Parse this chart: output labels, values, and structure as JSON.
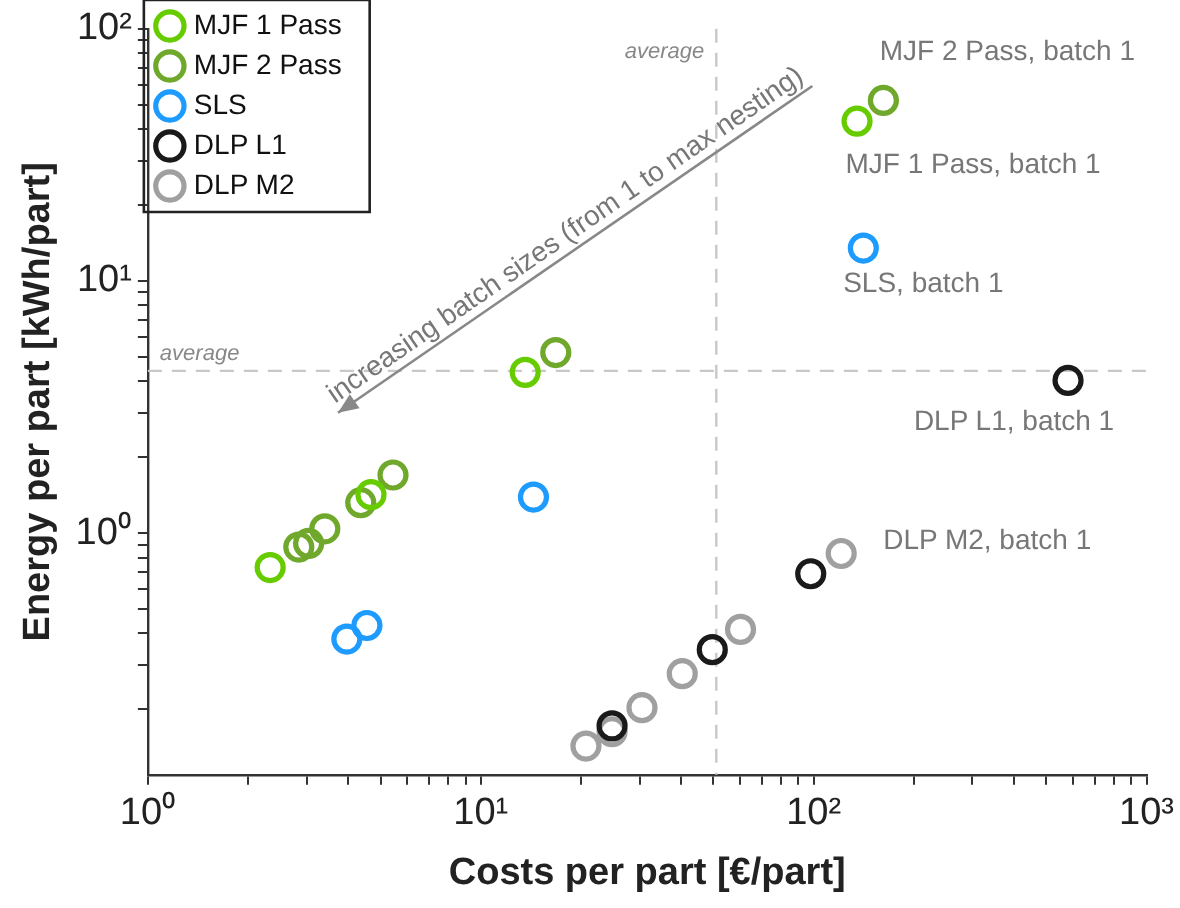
{
  "chart_data": {
    "type": "scatter",
    "xlabel": "Costs per part [€/part]",
    "ylabel": "Energy per part [kWh/part]",
    "log": "xy",
    "grid": false,
    "marker": "circle",
    "legend": "top left",
    "xlim": [
      1,
      1000
    ],
    "ylim": [
      0.11,
      100
    ],
    "xticks": [
      {
        "value": 1,
        "label": "10⁰"
      },
      {
        "value": 2,
        "label": null
      },
      {
        "value": 3,
        "label": null
      },
      {
        "value": 4,
        "label": null
      },
      {
        "value": 5,
        "label": null
      },
      {
        "value": 6,
        "label": null
      },
      {
        "value": 7,
        "label": null
      },
      {
        "value": 8,
        "label": null
      },
      {
        "value": 9,
        "label": null
      },
      {
        "value": 10,
        "label": "10¹"
      },
      {
        "value": 20,
        "label": null
      },
      {
        "value": 30,
        "label": null
      },
      {
        "value": 40,
        "label": null
      },
      {
        "value": 50,
        "label": null
      },
      {
        "value": 60,
        "label": null
      },
      {
        "value": 70,
        "label": null
      },
      {
        "value": 80,
        "label": null
      },
      {
        "value": 90,
        "label": null
      },
      {
        "value": 100,
        "label": "10²"
      },
      {
        "value": 200,
        "label": null
      },
      {
        "value": 300,
        "label": null
      },
      {
        "value": 400,
        "label": null
      },
      {
        "value": 500,
        "label": null
      },
      {
        "value": 600,
        "label": null
      },
      {
        "value": 700,
        "label": null
      },
      {
        "value": 800,
        "label": null
      },
      {
        "value": 900,
        "label": null
      },
      {
        "value": 1000,
        "label": "10³"
      }
    ],
    "yticks": [
      {
        "value": 0.2,
        "label": null
      },
      {
        "value": 0.3,
        "label": null
      },
      {
        "value": 0.4,
        "label": null
      },
      {
        "value": 0.5,
        "label": null
      },
      {
        "value": 0.6,
        "label": null
      },
      {
        "value": 0.7,
        "label": null
      },
      {
        "value": 0.8,
        "label": null
      },
      {
        "value": 0.9,
        "label": null
      },
      {
        "value": 1,
        "label": "10⁰"
      },
      {
        "value": 2,
        "label": null
      },
      {
        "value": 3,
        "label": null
      },
      {
        "value": 4,
        "label": null
      },
      {
        "value": 5,
        "label": null
      },
      {
        "value": 6,
        "label": null
      },
      {
        "value": 7,
        "label": null
      },
      {
        "value": 8,
        "label": null
      },
      {
        "value": 9,
        "label": null
      },
      {
        "value": 10,
        "label": "10¹"
      },
      {
        "value": 20,
        "label": null
      },
      {
        "value": 30,
        "label": null
      },
      {
        "value": 40,
        "label": null
      },
      {
        "value": 50,
        "label": null
      },
      {
        "value": 60,
        "label": null
      },
      {
        "value": 70,
        "label": null
      },
      {
        "value": 80,
        "label": null
      },
      {
        "value": 90,
        "label": null
      },
      {
        "value": 100,
        "label": "10²"
      }
    ],
    "series": [
      {
        "name": "MJF 1 Pass",
        "color": "#66cc00",
        "x": [
          2.33,
          4.68,
          13.6,
          135
        ],
        "values": [
          0.73,
          1.42,
          4.34,
          43
        ]
      },
      {
        "name": "MJF 2 Pass",
        "color": "#6fa82a",
        "x": [
          2.84,
          3.04,
          3.4,
          4.36,
          5.45,
          16.8,
          162
        ],
        "values": [
          0.88,
          0.91,
          1.04,
          1.32,
          1.7,
          5.2,
          52
        ]
      },
      {
        "name": "SLS",
        "color": "#1e9bff",
        "x": [
          3.96,
          4.55,
          14.4,
          141
        ],
        "values": [
          0.38,
          0.43,
          1.39,
          13.5
        ]
      },
      {
        "name": "DLP L1",
        "color": "#1a1a1a",
        "x": [
          24.8,
          49.6,
          98,
          581
        ],
        "values": [
          0.172,
          0.345,
          0.69,
          4.03
        ]
      },
      {
        "name": "DLP M2",
        "color": "#a0a0a0",
        "x": [
          20.7,
          24.8,
          30.5,
          40.3,
          60.3,
          121
        ],
        "values": [
          0.143,
          0.163,
          0.203,
          0.277,
          0.415,
          0.83
        ]
      }
    ],
    "ref_lines": [
      {
        "axis": "x",
        "value": 51,
        "label": "average",
        "color": "#c8c8c8",
        "line_style": "dashed"
      },
      {
        "axis": "y",
        "value": 4.4,
        "label": "average",
        "color": "#c8c8c8",
        "line_style": "dashed"
      }
    ],
    "annotations": [
      "increasing batch sizes (from 1 to max nesting)",
      {
        "text": "MJF 2 Pass, batch 1",
        "x": 162,
        "y": 52
      },
      {
        "text": "MJF 1 Pass, batch 1",
        "x": 135,
        "y": 43
      },
      {
        "text": "SLS, batch 1",
        "x": 141,
        "y": 13.5
      },
      {
        "text": "DLP L1, batch 1",
        "x": 581,
        "y": 4.03
      },
      {
        "text": "DLP M2, batch 1",
        "x": 121,
        "y": 0.83
      }
    ]
  }
}
